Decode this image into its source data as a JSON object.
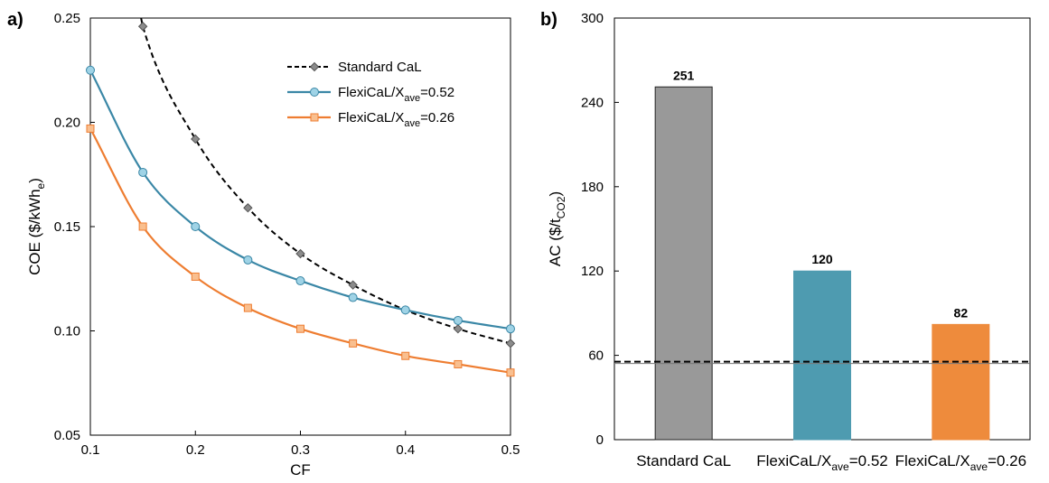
{
  "chart_data": [
    {
      "panel": "a)",
      "type": "line",
      "xlabel": "CF",
      "ylabel_base": "COE ($/kWh",
      "ylabel_sub": "e",
      "ylabel_close": ")",
      "xlim": [
        0.1,
        0.5
      ],
      "ylim": [
        0.05,
        0.25
      ],
      "xticks": [
        0.1,
        0.2,
        0.3,
        0.4,
        0.5
      ],
      "yticks": [
        0.05,
        0.1,
        0.15,
        0.2,
        0.25
      ],
      "xtick_labels": [
        "0.1",
        "0.2",
        "0.3",
        "0.4",
        "0.5"
      ],
      "ytick_labels": [
        "0.05",
        "0.10",
        "0.15",
        "0.20",
        "0.25"
      ],
      "legend_position": "top-right",
      "series": [
        {
          "name": "Standard CaL",
          "legend": {
            "base": "Standard CaL",
            "sub": "",
            "tail": ""
          },
          "style": "dashed",
          "marker": "diamond",
          "line_color": "#000000",
          "marker_fill": "#8c8c8c",
          "marker_stroke": "#555555",
          "x": [
            0.15,
            0.2,
            0.25,
            0.3,
            0.35,
            0.4,
            0.45,
            0.5
          ],
          "y": [
            0.246,
            0.192,
            0.159,
            0.137,
            0.122,
            0.11,
            0.101,
            0.094
          ],
          "curve_start": [
            0.1483,
            0.25
          ]
        },
        {
          "name": "FlexiCaL/Xave=0.52",
          "legend": {
            "base": "FlexiCaL/X",
            "sub": "ave",
            "tail": "=0.52"
          },
          "style": "solid",
          "marker": "circle",
          "line_color": "#3a87a6",
          "marker_fill": "#9fd3e6",
          "marker_stroke": "#3a87a6",
          "x": [
            0.1,
            0.15,
            0.2,
            0.25,
            0.3,
            0.35,
            0.4,
            0.45,
            0.5
          ],
          "y": [
            0.225,
            0.176,
            0.15,
            0.134,
            0.124,
            0.116,
            0.11,
            0.105,
            0.101
          ]
        },
        {
          "name": "FlexiCaL/Xave=0.26",
          "legend": {
            "base": "FlexiCaL/X",
            "sub": "ave",
            "tail": "=0.26"
          },
          "style": "solid",
          "marker": "square",
          "line_color": "#ee7d31",
          "marker_fill": "#f9bf8f",
          "marker_stroke": "#ee7d31",
          "x": [
            0.1,
            0.15,
            0.2,
            0.25,
            0.3,
            0.35,
            0.4,
            0.45,
            0.5
          ],
          "y": [
            0.197,
            0.15,
            0.126,
            0.111,
            0.101,
            0.094,
            0.088,
            0.084,
            0.08
          ]
        }
      ]
    },
    {
      "panel": "b)",
      "type": "bar",
      "ylabel_base": "AC ($/t",
      "ylabel_sub": "CO2",
      "ylabel_close": ")",
      "ylim": [
        0,
        300
      ],
      "yticks": [
        0,
        60,
        120,
        180,
        240,
        300
      ],
      "ytick_labels": [
        "0",
        "60",
        "120",
        "180",
        "240",
        "300"
      ],
      "categories": [
        {
          "base": "Standard CaL",
          "sub": "",
          "tail": ""
        },
        {
          "base": "FlexiCaL/X",
          "sub": "ave",
          "tail": "=0.52"
        },
        {
          "base": "FlexiCaL/X",
          "sub": "ave",
          "tail": "=0.26"
        }
      ],
      "values": [
        251,
        120,
        82
      ],
      "value_labels": [
        "251",
        "120",
        "82"
      ],
      "colors": [
        "#999999",
        "#4e9bb0",
        "#ee8b3c"
      ],
      "bar_strokes": [
        "#222222",
        "#4e9bb0",
        "#ee8b3c"
      ],
      "reference_line": {
        "value": 55.5,
        "style": "dashed",
        "color": "#000000"
      }
    }
  ]
}
